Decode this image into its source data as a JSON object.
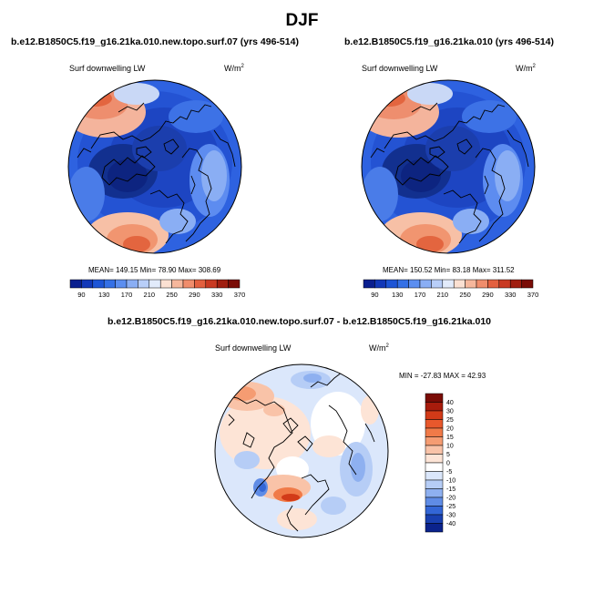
{
  "season_title": "DJF",
  "panels": [
    {
      "title": "b.e12.B1850C5.f19_g16.21ka.010.new.topo.surf.07 (yrs 496-514)",
      "field": "Surf downwelling LW",
      "units_base": "W/m",
      "units_exp": "2",
      "stats": "MEAN= 149.15  Min=  78.90  Max= 308.69",
      "colorbar_labels": [
        "90",
        "130",
        "170",
        "210",
        "250",
        "290",
        "330",
        "370"
      ]
    },
    {
      "title": "b.e12.B1850C5.f19_g16.21ka.010 (yrs 496-514)",
      "field": "Surf downwelling LW",
      "units_base": "W/m",
      "units_exp": "2",
      "stats": "MEAN= 150.52  Min=  83.18  Max= 311.52",
      "colorbar_labels": [
        "90",
        "130",
        "170",
        "210",
        "250",
        "290",
        "330",
        "370"
      ]
    }
  ],
  "difference_panel": {
    "title": "b.e12.B1850C5.f19_g16.21ka.010.new.topo.surf.07 - b.e12.B1850C5.f19_g16.21ka.010",
    "field": "Surf downwelling LW",
    "units_base": "W/m",
    "units_exp": "2",
    "stats": "MIN = -27.83 MAX =  42.93",
    "colorbar_labels": [
      "40",
      "30",
      "25",
      "20",
      "15",
      "10",
      "5",
      "0",
      "-5",
      "-10",
      "-15",
      "-20",
      "-25",
      "-30",
      "-40"
    ]
  },
  "colors": {
    "abs_scale": [
      "#0a1f8f",
      "#1238b8",
      "#1d55d6",
      "#3470e6",
      "#5b8ef0",
      "#8aaef4",
      "#b8cef8",
      "#e2ebfb",
      "#fbe0d2",
      "#f6b79c",
      "#f08d6c",
      "#e3603f",
      "#c93a22",
      "#a01e10",
      "#7a0c06"
    ],
    "diff_scale": [
      "#7a0c06",
      "#a81c0c",
      "#d23a18",
      "#e8582c",
      "#f07a48",
      "#f59c72",
      "#f9c3a8",
      "#fde4d6",
      "#ffffff",
      "#dbe7fb",
      "#b6cdf6",
      "#8eb0f0",
      "#5f8ce6",
      "#3366d6",
      "#1940b0",
      "#0b238c"
    ]
  }
}
